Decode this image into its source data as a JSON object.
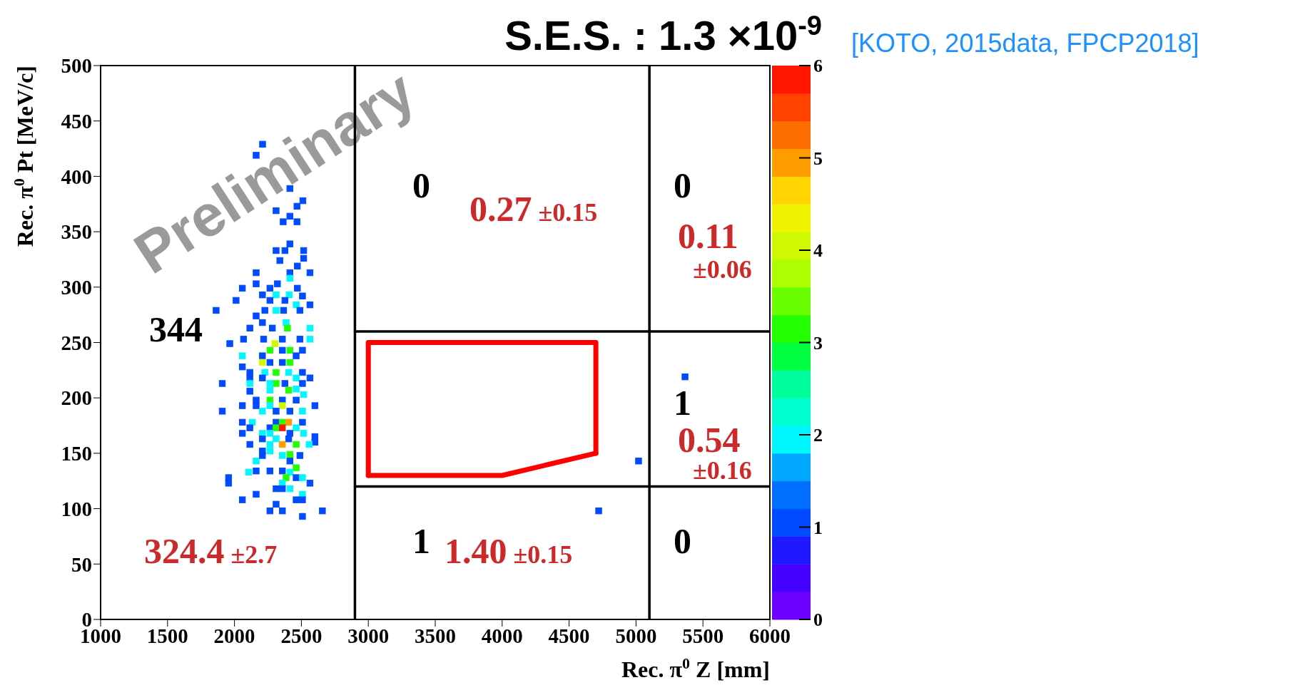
{
  "chart_data": {
    "type": "scatter",
    "title": "S.E.S. : 1.3 ×10$^{-9}$",
    "xlabel": "Rec.  π$^{0}$ Z [mm]",
    "ylabel": "Rec.  π$^{0}$ Pt [MeV/c]",
    "xlim": [
      1000,
      6000
    ],
    "xticks": [
      1000,
      1500,
      2000,
      2500,
      3000,
      3500,
      4000,
      4500,
      5000,
      5500,
      6000
    ],
    "ylim": [
      0,
      500
    ],
    "yticks": [
      0,
      50,
      100,
      150,
      200,
      250,
      300,
      350,
      400,
      450,
      500
    ],
    "clim": [
      0,
      6
    ],
    "cticks": [
      0,
      1,
      2,
      3,
      4,
      5,
      6
    ],
    "marker": "square",
    "series": [
      {
        "colors": [
          "#004aff",
          "#004aff",
          "#004aff",
          "#004aff",
          "#004aff",
          "#004aff",
          "#004aff",
          "#004aff",
          "#004aff",
          "#004aff",
          "#004aff",
          "#004aff",
          "#004aff",
          "#004aff",
          "#004aff",
          "#004aff",
          "#004aff",
          "#004aff",
          "#004aff",
          "#00f7ff",
          "#004aff",
          "#004aff",
          "#004aff",
          "#004aff",
          "#004aff",
          "#004aff",
          "#004aff",
          "#00f7ff",
          "#00f7ff",
          "#004aff",
          "#004aff",
          "#004aff",
          "#00f7ff",
          "#004aff",
          "#004aff",
          "#004aff",
          "#004aff",
          "#00f7ff",
          "#004aff",
          "#004aff",
          "#004aff",
          "#00f7ff",
          "#004aff",
          "#004aff",
          "#23ff00",
          "#00f7ff",
          "#004aff",
          "#004aff",
          "#004aff",
          "#004aff",
          "#004aff",
          "#00f7ff",
          "#cef900",
          "#23ff00",
          "#004aff",
          "#23ff00",
          "#004aff",
          "#00f7ff",
          "#004aff",
          "#004aff",
          "#cef900",
          "#004aff",
          "#004aff",
          "#23ff00",
          "#004aff",
          "#004aff",
          "#00f7ff",
          "#23ff00",
          "#00f7ff",
          "#004aff",
          "#004aff",
          "#004aff",
          "#004aff",
          "#23ff00",
          "#00f7ff",
          "#004aff",
          "#00f7ff",
          "#00f7ff",
          "#004aff",
          "#004aff",
          "#004aff",
          "#00f7ff",
          "#23ff00",
          "#00f7ff",
          "#004aff",
          "#23ff00",
          "#004aff",
          "#004aff",
          "#00f7ff",
          "#004aff",
          "#004aff",
          "#004aff",
          "#00f7ff",
          "#cef900",
          "#004aff",
          "#00f7ff",
          "#004aff",
          "#004aff",
          "#00f7ff",
          "#004aff",
          "#00f7ff",
          "#004aff",
          "#23ff00",
          "#ff9c00",
          "#004aff",
          "#004aff",
          "#004aff",
          "#23ff00",
          "#ff1600",
          "#00f7ff",
          "#004aff",
          "#00f7ff",
          "#00f7ff",
          "#004aff",
          "#00f7ff",
          "#004aff",
          "#004aff",
          "#00f7ff",
          "#004aff",
          "#004aff",
          "#004aff",
          "#00f7ff",
          "#ff9c00",
          "#23ff00",
          "#00f7ff",
          "#004aff",
          "#00f7ff",
          "#00f7ff",
          "#23ff00",
          "#004aff",
          "#00f7ff",
          "#004aff",
          "#004aff",
          "#23ff00",
          "#004aff",
          "#004aff",
          "#00f7ff",
          "#004aff",
          "#004aff",
          "#004aff",
          "#00f7ff",
          "#23ff00",
          "#004aff",
          "#00f7ff",
          "#00f7ff",
          "#004aff",
          "#00f7ff",
          "#004aff",
          "#004aff",
          "#004aff",
          "#00f7ff",
          "#004aff",
          "#004aff",
          "#004aff",
          "#004aff",
          "#004aff",
          "#004aff",
          "#004aff",
          "#004aff",
          "#004aff",
          "#004aff",
          "#004aff"
        ],
        "x": [
          2210,
          2162,
          2414,
          2511,
          2467,
          2311,
          2414,
          2364,
          2467,
          2414,
          2311,
          2377,
          2517,
          2517,
          2339,
          2470,
          2162,
          2414,
          2564,
          2414,
          2059,
          2162,
          2321,
          2265,
          2470,
          2012,
          2209,
          2311,
          2409,
          2508,
          2265,
          2377,
          2461,
          2564,
          1863,
          2162,
          2227,
          2311,
          2367,
          2489,
          2209,
          2386,
          2115,
          2283,
          2396,
          2564,
          1965,
          2068,
          2218,
          2358,
          2489,
          2564,
          2302,
          2265,
          2358,
          2414,
          2508,
          2059,
          2209,
          2461,
          2209,
          2265,
          2358,
          2414,
          2059,
          2115,
          2227,
          2311,
          2405,
          2508,
          1909,
          2115,
          2209,
          2311,
          2461,
          2564,
          2115,
          2265,
          2377,
          2508,
          2115,
          2265,
          2405,
          2461,
          2162,
          2265,
          2358,
          2461,
          2517,
          1909,
          2059,
          2162,
          2265,
          2358,
          2601,
          2209,
          2311,
          2414,
          2508,
          2059,
          2134,
          2311,
          2358,
          2405,
          2508,
          2115,
          2265,
          2311,
          2358,
          2461,
          2059,
          2209,
          2265,
          2414,
          2517,
          2601,
          2209,
          2311,
          2405,
          2601,
          2115,
          2265,
          2358,
          2461,
          2558,
          2209,
          2265,
          2358,
          2414,
          2489,
          2162,
          2209,
          2414,
          2461,
          1956,
          1956,
          2106,
          2162,
          2265,
          2358,
          2414,
          2386,
          2461,
          2508,
          2358,
          2564,
          2414,
          2311,
          2358,
          2162,
          2508,
          2059,
          2461,
          2508,
          2311,
          2265,
          2358,
          2508,
          2657,
          5366,
          5019,
          4721
        ],
        "values": [
          429,
          419,
          389,
          378,
          373,
          369,
          364,
          359,
          359,
          339,
          333,
          333,
          333,
          326,
          324,
          319,
          313,
          313,
          313,
          308,
          299,
          303,
          303,
          299,
          299,
          288,
          293,
          293,
          293,
          292,
          288,
          288,
          284,
          284,
          279,
          274,
          279,
          279,
          279,
          279,
          268,
          268,
          263,
          263,
          263,
          263,
          249,
          253,
          253,
          253,
          253,
          253,
          249,
          243,
          243,
          243,
          243,
          238,
          238,
          238,
          232,
          232,
          232,
          232,
          228,
          223,
          223,
          223,
          223,
          223,
          213,
          218,
          218,
          213,
          218,
          218,
          213,
          213,
          213,
          213,
          206,
          207,
          207,
          208,
          198,
          198,
          198,
          198,
          203,
          188,
          193,
          193,
          193,
          193,
          193,
          188,
          188,
          188,
          188,
          178,
          178,
          178,
          178,
          178,
          178,
          173,
          173,
          173,
          173,
          173,
          168,
          168,
          168,
          168,
          168,
          165,
          163,
          163,
          163,
          160,
          158,
          158,
          158,
          158,
          158,
          152,
          152,
          148,
          149,
          148,
          143,
          148,
          143,
          137,
          128,
          123,
          133,
          134,
          134,
          134,
          133,
          128,
          128,
          128,
          123,
          123,
          118,
          118,
          118,
          113,
          113,
          108,
          108,
          108,
          104,
          98,
          98,
          93,
          98,
          219,
          143,
          98
        ],
        "cvalues": [
          1,
          1,
          1,
          1,
          1,
          1,
          1,
          1,
          1,
          1,
          1,
          1,
          1,
          1,
          1,
          1,
          1,
          1,
          1,
          2,
          1,
          1,
          1,
          1,
          1,
          1,
          1,
          2,
          2,
          1,
          1,
          1,
          2,
          1,
          1,
          1,
          1,
          2,
          1,
          1,
          1,
          2,
          1,
          1,
          3,
          2,
          1,
          1,
          1,
          1,
          1,
          2,
          4,
          3,
          1,
          3,
          1,
          2,
          1,
          1,
          4,
          1,
          1,
          3,
          1,
          1,
          2,
          3,
          2,
          1,
          1,
          1,
          1,
          3,
          2,
          1,
          2,
          2,
          1,
          1,
          1,
          2,
          3,
          2,
          1,
          3,
          1,
          1,
          2,
          1,
          1,
          1,
          2,
          4,
          1,
          2,
          1,
          1,
          2,
          1,
          2,
          1,
          3,
          5,
          1,
          1,
          1,
          3,
          6,
          2,
          1,
          2,
          2,
          1,
          2,
          1,
          1,
          2,
          1,
          1,
          1,
          2,
          5,
          3,
          2,
          1,
          2,
          2,
          3,
          1,
          2,
          1,
          1,
          3,
          1,
          1,
          2,
          1,
          1,
          1,
          2,
          3,
          1,
          2,
          2,
          1,
          2,
          1,
          1,
          1,
          2,
          1,
          1,
          1,
          1,
          1,
          1,
          1,
          1,
          1,
          1,
          1
        ]
      },
      {
        "type": "line",
        "marker": "none",
        "color": "#000000",
        "x": [
          2900,
          2900
        ],
        "values": [
          0,
          500
        ]
      },
      {
        "type": "line",
        "marker": "none",
        "color": "#000000",
        "x": [
          5100,
          5100
        ],
        "values": [
          0,
          500
        ]
      },
      {
        "type": "line",
        "marker": "none",
        "color": "#000000",
        "x": [
          2900,
          6000
        ],
        "values": [
          260,
          260
        ]
      },
      {
        "type": "line",
        "marker": "none",
        "color": "#000000",
        "x": [
          2900,
          6000
        ],
        "values": [
          120,
          120
        ]
      },
      {
        "type": "line",
        "marker": "none",
        "color": "#ff0000",
        "x": [
          3000,
          3000,
          4700,
          4700
        ],
        "values": [
          130,
          250,
          250,
          150
        ]
      },
      {
        "type": "line",
        "marker": "none",
        "color": "#ff0000",
        "x": [
          3000,
          4000,
          4700
        ],
        "values": [
          130,
          130,
          150
        ]
      }
    ],
    "annotations": [
      "[KOTO, 2015data, FPCP2018]",
      "Preliminary",
      "344",
      "324.4 ±2.7",
      "0",
      "0.27 ±0.15",
      "0",
      "0.11",
      "±0.06",
      "1",
      "0.54",
      "±0.16",
      "1",
      "1.40 ±0.15",
      "0"
    ]
  }
}
